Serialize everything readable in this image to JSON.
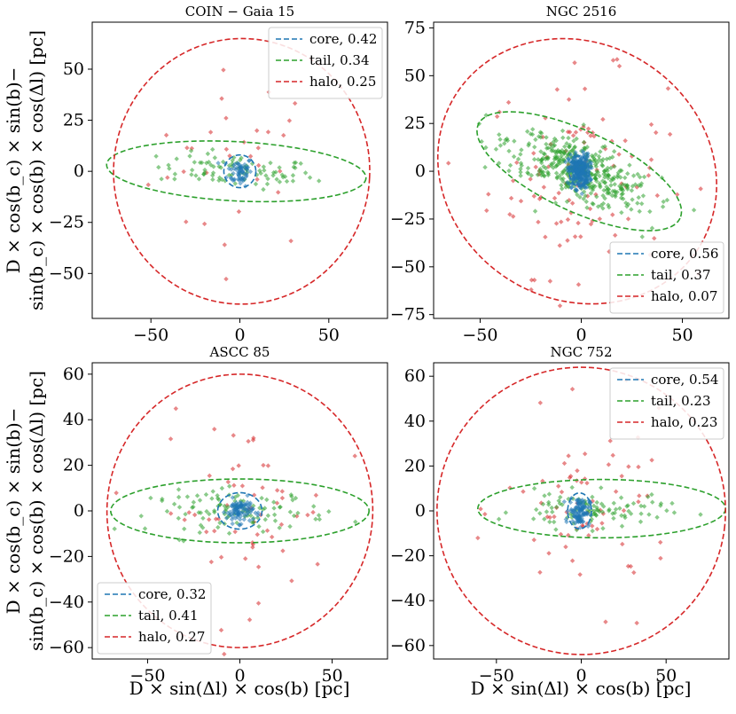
{
  "figure": {
    "xlabel": "D × sin(Δl) × cos(b) [pc]",
    "ylabel_line1": "D × cos(b_c) × sin(b)−",
    "ylabel_line2": "sin(b_c) × cos(b) × cos(Δl) [pc]"
  },
  "colors": {
    "core": "#1f77b4",
    "tail": "#2ca02c",
    "halo": "#d62728"
  },
  "chart_data": [
    {
      "type": "scatter",
      "title": "COIN − Gaia 15",
      "xlim": [
        -83,
        83
      ],
      "ylim": [
        -72,
        73
      ],
      "xticks": [
        -50,
        0,
        50
      ],
      "yticks": [
        -50,
        -25,
        0,
        25,
        50
      ],
      "legend_position": "top-right",
      "components": [
        {
          "name": "core",
          "fraction": "0.42",
          "ellipse": {
            "cx": 0,
            "cy": 0,
            "rx": 9,
            "ry": 8,
            "angle": 0
          }
        },
        {
          "name": "tail",
          "fraction": "0.34",
          "ellipse": {
            "cx": -2,
            "cy": 0,
            "rx": 73,
            "ry": 14.5,
            "angle": -3
          }
        },
        {
          "name": "halo",
          "fraction": "0.25",
          "ellipse": {
            "cx": 1,
            "cy": 0,
            "rx": 72,
            "ry": 65,
            "angle": -3
          }
        }
      ],
      "scatter": {
        "core": {
          "n": 60,
          "sx": 3.5,
          "sy": 3.5,
          "cx": 0,
          "cy": 0
        },
        "tail": {
          "n": 90,
          "sx": 22,
          "sy": 4,
          "cx": -2,
          "cy": 0,
          "angle": -3
        },
        "halo": {
          "n": 32,
          "sx": 25,
          "sy": 22,
          "cx": 0,
          "cy": 5
        }
      }
    },
    {
      "type": "scatter",
      "title": "NGC 2516",
      "xlim": [
        -73,
        73
      ],
      "ylim": [
        -77,
        78
      ],
      "xticks": [
        -50,
        0,
        50
      ],
      "yticks": [
        -75,
        -50,
        -25,
        0,
        25,
        50,
        75
      ],
      "legend_position": "bottom-right",
      "components": [
        {
          "name": "core",
          "fraction": "0.56",
          "ellipse": {
            "cx": -1,
            "cy": 0,
            "rx": 5,
            "ry": 8,
            "angle": 0
          }
        },
        {
          "name": "tail",
          "fraction": "0.37",
          "ellipse": {
            "cx": -1,
            "cy": 0,
            "rx": 55,
            "ry": 21,
            "angle": -25
          }
        },
        {
          "name": "halo",
          "fraction": "0.07",
          "ellipse": {
            "cx": -2,
            "cy": 0,
            "rx": 71,
            "ry": 67,
            "angle": -32
          }
        }
      ],
      "scatter": {
        "core": {
          "n": 260,
          "sx": 2.6,
          "sy": 4.5,
          "cx": -1,
          "cy": 0
        },
        "tail": {
          "n": 420,
          "sx": 19,
          "sy": 7,
          "cx": -1,
          "cy": 0,
          "angle": -25
        },
        "halo": {
          "n": 110,
          "sx": 22,
          "sy": 26,
          "cx": -2,
          "cy": -2
        }
      }
    },
    {
      "type": "scatter",
      "title": "ASCC 85",
      "xlim": [
        -80,
        80
      ],
      "ylim": [
        -65,
        65
      ],
      "xticks": [
        -50,
        0,
        50
      ],
      "yticks": [
        -60,
        -40,
        -20,
        0,
        20,
        40,
        60
      ],
      "legend_position": "bottom-left",
      "components": [
        {
          "name": "core",
          "fraction": "0.32",
          "ellipse": {
            "cx": 0,
            "cy": 0,
            "rx": 12,
            "ry": 8,
            "angle": 0
          }
        },
        {
          "name": "tail",
          "fraction": "0.41",
          "ellipse": {
            "cx": 0,
            "cy": 0,
            "rx": 70,
            "ry": 14,
            "angle": 0
          }
        },
        {
          "name": "halo",
          "fraction": "0.27",
          "ellipse": {
            "cx": 0,
            "cy": 0,
            "rx": 72,
            "ry": 60,
            "angle": -5
          }
        }
      ],
      "scatter": {
        "core": {
          "n": 90,
          "sx": 3.6,
          "sy": 2.6,
          "cx": 0,
          "cy": 0
        },
        "tail": {
          "n": 110,
          "sx": 24,
          "sy": 4.5,
          "cx": 0,
          "cy": 0,
          "angle": 0
        },
        "halo": {
          "n": 60,
          "sx": 23,
          "sy": 20,
          "cx": 2,
          "cy": 0
        }
      }
    },
    {
      "type": "scatter",
      "title": "NGC 752",
      "xlim": [
        -87,
        87
      ],
      "ylim": [
        -66,
        66
      ],
      "xticks": [
        -50,
        0,
        50
      ],
      "yticks": [
        -60,
        -40,
        -20,
        0,
        20,
        40,
        60
      ],
      "legend_position": "top-right",
      "components": [
        {
          "name": "core",
          "fraction": "0.54",
          "ellipse": {
            "cx": -1,
            "cy": 0,
            "rx": 7,
            "ry": 8,
            "angle": 0
          }
        },
        {
          "name": "tail",
          "fraction": "0.23",
          "ellipse": {
            "cx": 12,
            "cy": 1,
            "rx": 73,
            "ry": 13,
            "angle": 0
          }
        },
        {
          "name": "halo",
          "fraction": "0.23",
          "ellipse": {
            "cx": 0,
            "cy": 0,
            "rx": 85,
            "ry": 64,
            "angle": -6
          }
        }
      ],
      "scatter": {
        "core": {
          "n": 100,
          "sx": 3,
          "sy": 3.2,
          "cx": -1,
          "cy": 0
        },
        "tail": {
          "n": 100,
          "sx": 22,
          "sy": 4,
          "cx": 5,
          "cy": 0,
          "angle": 0
        },
        "halo": {
          "n": 70,
          "sx": 25,
          "sy": 20,
          "cx": 5,
          "cy": 0
        }
      }
    }
  ]
}
